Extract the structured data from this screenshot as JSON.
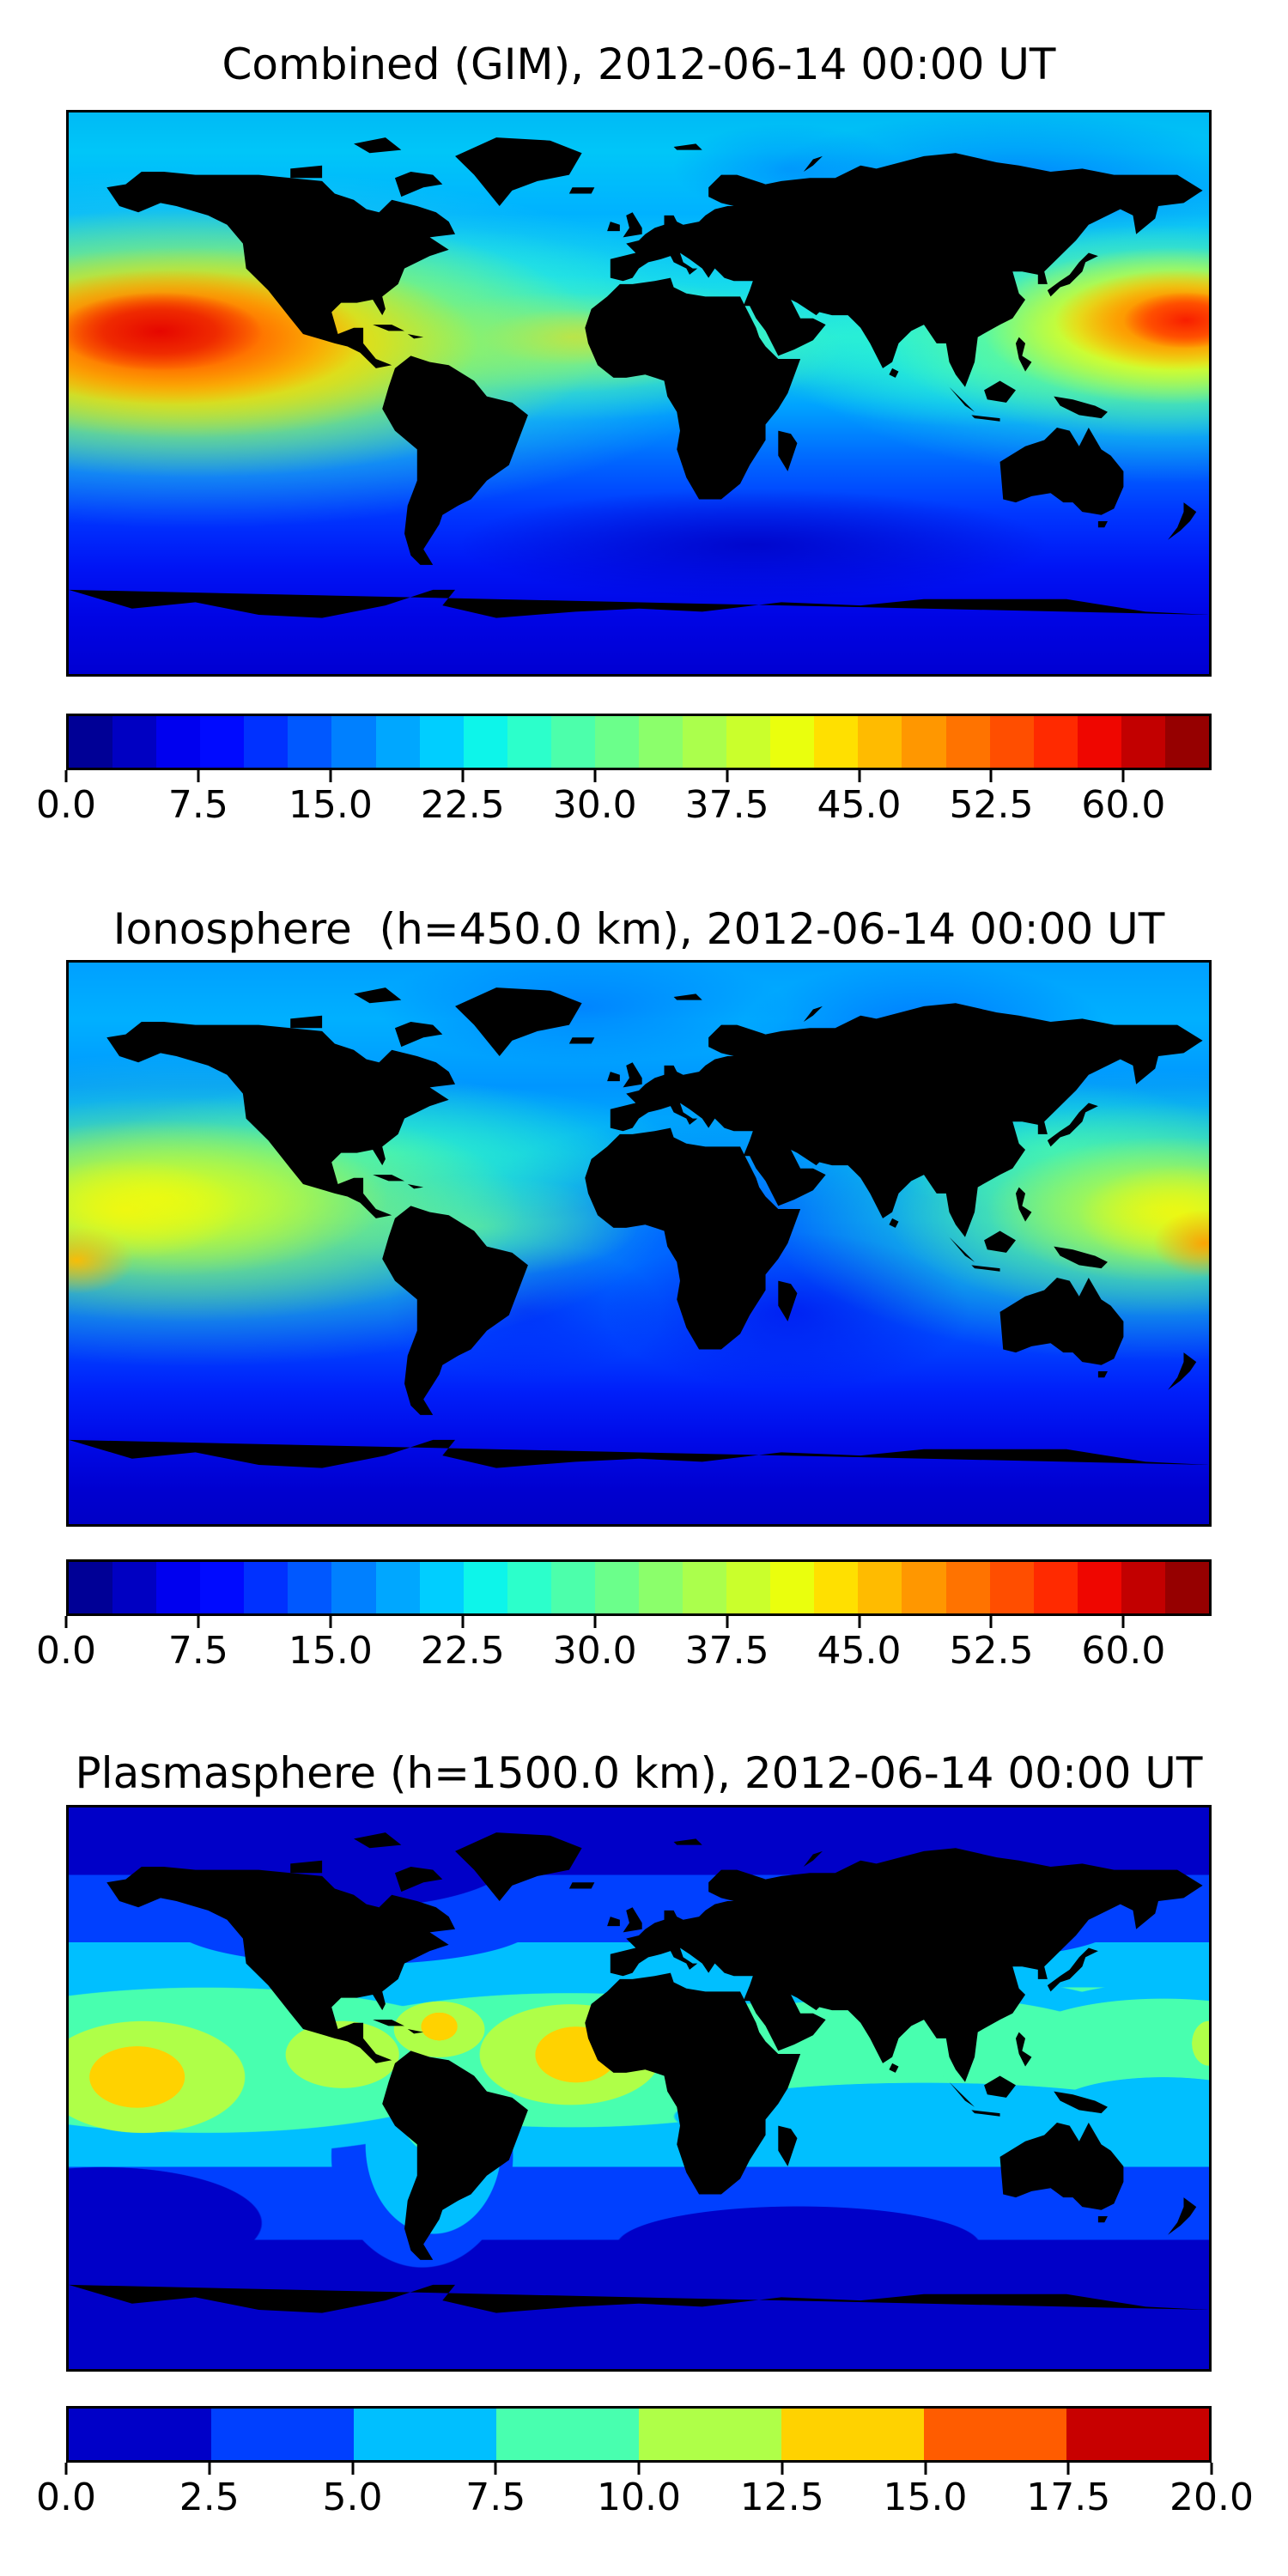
{
  "figure": {
    "background": "#ffffff"
  },
  "panels": [
    {
      "id": "combined",
      "title": "Combined (GIM), 2012-06-14 00:00 UT",
      "colorbar": {
        "bar_min": 0,
        "bar_max": 65,
        "tick_values": [
          0,
          7.5,
          15,
          22.5,
          30,
          37.5,
          45,
          52.5,
          60
        ],
        "tick_labels": [
          "0.0",
          "7.5",
          "15.0",
          "22.5",
          "30.0",
          "37.5",
          "45.0",
          "52.5",
          "60.0"
        ],
        "band_colors": [
          "#000096",
          "#0000c2",
          "#0000ef",
          "#000aff",
          "#0031ff",
          "#0058ff",
          "#0080ff",
          "#00a7ff",
          "#00ceff",
          "#0df5ea",
          "#2cffcb",
          "#4cffab",
          "#6bff8b",
          "#8bff6b",
          "#abff4c",
          "#caff2c",
          "#eaff0d",
          "#ffe000",
          "#ffbb00",
          "#ff9700",
          "#ff7300",
          "#ff4e00",
          "#ff2a00",
          "#ef0600",
          "#c20000",
          "#960000"
        ]
      }
    },
    {
      "id": "ionosphere",
      "title": "Ionosphere  (h=450.0 km), 2012-06-14 00:00 UT",
      "colorbar": {
        "bar_min": 0,
        "bar_max": 65,
        "tick_values": [
          0,
          7.5,
          15,
          22.5,
          30,
          37.5,
          45,
          52.5,
          60
        ],
        "tick_labels": [
          "0.0",
          "7.5",
          "15.0",
          "22.5",
          "30.0",
          "37.5",
          "45.0",
          "52.5",
          "60.0"
        ],
        "band_colors": [
          "#000096",
          "#0000c2",
          "#0000ef",
          "#000aff",
          "#0031ff",
          "#0058ff",
          "#0080ff",
          "#00a7ff",
          "#00ceff",
          "#0df5ea",
          "#2cffcb",
          "#4cffab",
          "#6bff8b",
          "#8bff6b",
          "#abff4c",
          "#caff2c",
          "#eaff0d",
          "#ffe000",
          "#ffbb00",
          "#ff9700",
          "#ff7300",
          "#ff4e00",
          "#ff2a00",
          "#ef0600",
          "#c20000",
          "#960000"
        ]
      }
    },
    {
      "id": "plasmasphere",
      "title": "Plasmasphere (h=1500.0 km), 2012-06-14 00:00 UT",
      "colorbar": {
        "bar_min": 0,
        "bar_max": 20,
        "tick_values": [
          0,
          2.5,
          5,
          7.5,
          10,
          12.5,
          15,
          17.5,
          20
        ],
        "tick_labels": [
          "0.0",
          "2.5",
          "5.0",
          "7.5",
          "10.0",
          "12.5",
          "15.0",
          "17.5",
          "20.0"
        ],
        "band_colors": [
          "#0000c8",
          "#0040ff",
          "#00bfff",
          "#48ffaf",
          "#afff48",
          "#ffd200",
          "#ff5c00",
          "#c80000"
        ]
      }
    }
  ],
  "chart_data": [
    {
      "type": "heatmap",
      "title": "Combined (GIM), 2012-06-14 00:00 UT",
      "projection": "equirectangular world map, lon -180..180, lat 90..-90, black coastlines",
      "colormap": "jet, 26 discrete contour levels",
      "value_range": {
        "min": 0,
        "max": 65,
        "step": 2.5
      },
      "colorbar_ticks": [
        0,
        7.5,
        15,
        22.5,
        30,
        37.5,
        45,
        52.5,
        60
      ],
      "features": [
        {
          "region": "eastern Pacific ~5-25N, 170W-110W",
          "approx_value": "50-62, orange-red global maximum"
        },
        {
          "region": "western Pacific east of Japan ~15-30N near 180E",
          "approx_value": "45-58, second maximum"
        },
        {
          "region": "Caribbean / Central America ~20N",
          "approx_value": "35-42 yellow ridge"
        },
        {
          "region": "northern mid-high latitudes 40-80N",
          "approx_value": "18-28 cyan band"
        },
        {
          "region": "Africa / India ~10-30N",
          "approx_value": "12-22 blue"
        },
        {
          "region": "southern hemisphere 30-90S",
          "approx_value": "2-12 blue to navy minimum"
        }
      ]
    },
    {
      "type": "heatmap",
      "title": "Ionosphere  (h=450.0 km), 2012-06-14 00:00 UT",
      "projection": "equirectangular world map, lon -180..180, lat 90..-90, black coastlines",
      "colormap": "jet, 26 discrete contour levels",
      "value_range": {
        "min": 0,
        "max": 65,
        "step": 2.5
      },
      "colorbar_ticks": [
        0,
        7.5,
        15,
        22.5,
        30,
        37.5,
        45,
        52.5,
        60
      ],
      "features": [
        {
          "region": "eastern Pacific ~0-20N, 180W-120W",
          "approx_value": "37-45 yellow maximum, orange ~47 at far west edge"
        },
        {
          "region": "western Pacific east of Japan near 180E ~10-25N",
          "approx_value": "37-47 yellow with orange core at edge"
        },
        {
          "region": "North America / Atlantic mid-latitudes",
          "approx_value": "22-30 turquoise"
        },
        {
          "region": "Africa, Middle East, Indian Ocean",
          "approx_value": "5-15 deep blue minimum"
        },
        {
          "region": "southern high latitudes",
          "approx_value": "2-8 navy"
        }
      ]
    },
    {
      "type": "heatmap",
      "title": "Plasmasphere (h=1500.0 km), 2012-06-14 00:00 UT",
      "projection": "equirectangular world map, lon -180..180, lat 90..-90, black coastlines",
      "colormap": "jet, 8 discrete contour levels",
      "value_range": {
        "min": 0,
        "max": 20,
        "step": 2.5
      },
      "colorbar_ticks": [
        0,
        2.5,
        5,
        7.5,
        10,
        12.5,
        15,
        17.5,
        20
      ],
      "features": [
        {
          "region": "equatorial eastern Pacific ~160W, ~0-10N",
          "approx_value": "12.5-15 amber maximum"
        },
        {
          "region": "equatorial Atlantic / NE South America ~30W",
          "approx_value": "12.5-15 amber maximum"
        },
        {
          "region": "small spot ~Caribbean ~63W ~20N",
          "approx_value": "12.5-15"
        },
        {
          "region": "equatorial band within ~±20 lat, all longitudes",
          "approx_value": "7.5-12.5 green"
        },
        {
          "region": "mid latitudes ~25-45",
          "approx_value": "2.5-7.5 blue/cyan"
        },
        {
          "region": "high latitudes poleward of ~45",
          "approx_value": "0-2.5 navy"
        }
      ]
    }
  ]
}
